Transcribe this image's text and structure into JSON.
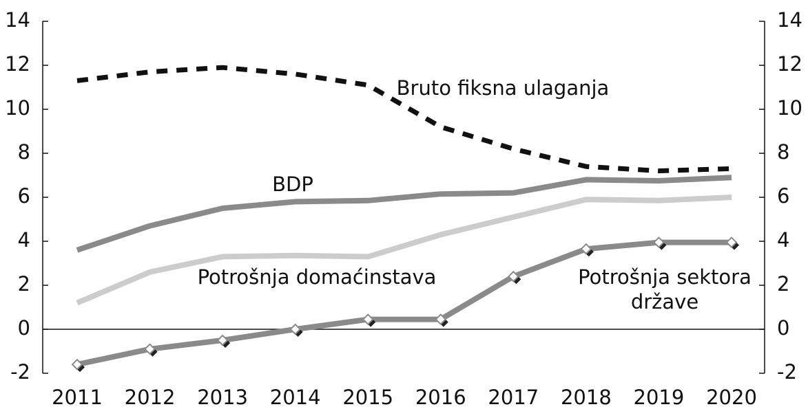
{
  "chart_data": {
    "type": "line",
    "categories": [
      "2011",
      "2012",
      "2013",
      "2014",
      "2015",
      "2016",
      "2017",
      "2018",
      "2019",
      "2020"
    ],
    "series": [
      {
        "name": "Bruto fiksna ulaganja",
        "color": "#111111",
        "style": "dashed",
        "values": [
          11.3,
          11.7,
          11.9,
          11.6,
          11.1,
          9.2,
          8.2,
          7.4,
          7.2,
          7.3
        ]
      },
      {
        "name": "BDP",
        "color": "#8a8a8a",
        "values": [
          3.6,
          4.7,
          5.5,
          5.8,
          5.85,
          6.15,
          6.2,
          6.8,
          6.75,
          6.9
        ]
      },
      {
        "name": "Potrošnja domaćinstava",
        "color": "#cccccc",
        "values": [
          1.2,
          2.6,
          3.3,
          3.35,
          3.3,
          4.3,
          5.1,
          5.9,
          5.85,
          6.0
        ]
      },
      {
        "name": "Potrošnja sektora države",
        "color": "#8a8a8a",
        "markers": true,
        "values": [
          -1.6,
          -0.9,
          -0.5,
          0,
          0.45,
          0.45,
          2.4,
          3.65,
          3.95,
          3.95
        ]
      }
    ],
    "ylim": [
      -2,
      14
    ],
    "yticks": [
      -2,
      0,
      2,
      4,
      6,
      8,
      10,
      12,
      14
    ],
    "y2lim": [
      -2,
      14
    ],
    "y2ticks": [
      -2,
      0,
      2,
      4,
      6,
      8,
      10,
      12,
      14
    ]
  }
}
